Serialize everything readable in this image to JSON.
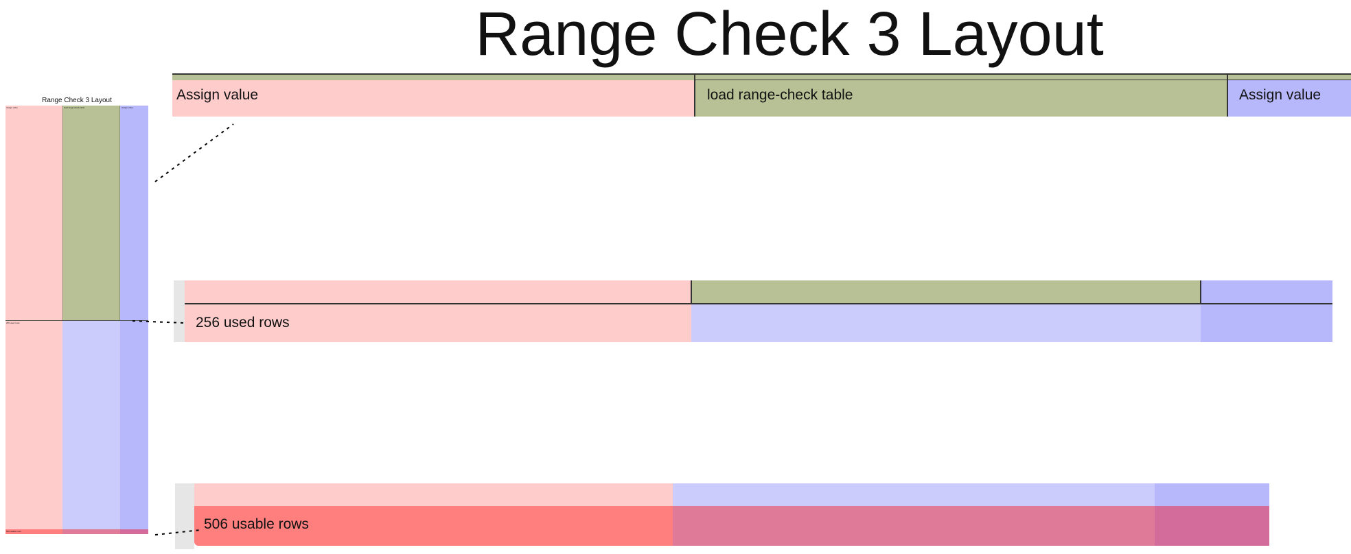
{
  "title": "Range Check 3 Layout",
  "thumbnail": {
    "title": "Range Check 3 Layout",
    "labels": {
      "assign_left": "Assign value",
      "load_table": "load range-check table",
      "assign_right": "Assign value",
      "used_rows": "256 used rows",
      "usable_rows": "506 usable rows"
    }
  },
  "detail_top": {
    "assign_left": "Assign value",
    "load_table": "load range-check table",
    "assign_right": "Assign value"
  },
  "detail_middle": {
    "used_rows": "256 used rows"
  },
  "detail_bottom": {
    "usable_rows": "506 usable rows"
  },
  "colors": {
    "pink": "#ffcccc",
    "olive": "#b8c195",
    "lavender": "#ccccfc",
    "blue": "#b7b8fb",
    "red": "#ff7f7f",
    "mauve": "#e07a99",
    "magenta": "#d36b9b",
    "gray": "#e6e6e6"
  }
}
